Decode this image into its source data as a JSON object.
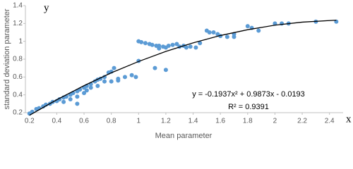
{
  "chart_data": {
    "type": "scatter",
    "x_label": "Mean parameter",
    "y_label": "standard deviation parameter",
    "x_axis_letter": "x",
    "y_axis_letter": "y",
    "equation": "y = -0.1937x² + 0.9873x - 0.0193",
    "r_squared": "R² = 0.9391",
    "color": "#5b9bd5",
    "x": [
      0.2,
      0.22,
      0.25,
      0.27,
      0.3,
      0.32,
      0.35,
      0.37,
      0.4,
      0.42,
      0.45,
      0.47,
      0.5,
      0.52,
      0.55,
      0.57,
      0.6,
      0.62,
      0.65,
      0.68,
      0.7,
      0.72,
      0.75,
      0.78,
      0.8,
      0.82,
      0.45,
      0.5,
      0.55,
      0.6,
      0.62,
      0.65,
      0.7,
      0.75,
      0.8,
      0.85,
      0.9,
      0.95,
      0.98,
      0.85,
      0.55,
      1.0,
      1.12,
      1.2,
      1.0,
      1.02,
      1.05,
      1.08,
      1.1,
      1.13,
      1.15,
      1.18,
      1.2,
      1.22,
      1.25,
      1.28,
      1.3,
      1.33,
      1.35,
      1.38,
      1.42,
      1.45,
      1.5,
      1.52,
      1.55,
      1.58,
      1.6,
      1.65,
      1.7,
      1.8,
      1.83,
      1.88,
      2.0,
      2.05,
      2.1,
      2.3,
      2.45,
      1.7,
      1.15
    ],
    "values": [
      0.19,
      0.21,
      0.24,
      0.25,
      0.27,
      0.29,
      0.3,
      0.32,
      0.33,
      0.35,
      0.37,
      0.38,
      0.4,
      0.42,
      0.44,
      0.46,
      0.48,
      0.5,
      0.52,
      0.55,
      0.57,
      0.58,
      0.6,
      0.65,
      0.66,
      0.7,
      0.32,
      0.35,
      0.38,
      0.42,
      0.45,
      0.48,
      0.5,
      0.55,
      0.55,
      0.56,
      0.6,
      0.62,
      0.6,
      0.58,
      0.3,
      0.78,
      0.7,
      0.68,
      1.0,
      0.99,
      0.98,
      0.97,
      0.96,
      0.95,
      0.95,
      0.94,
      0.93,
      0.95,
      0.96,
      0.97,
      0.94,
      0.95,
      0.93,
      0.94,
      0.93,
      0.98,
      1.12,
      1.1,
      1.1,
      1.08,
      1.06,
      1.05,
      1.05,
      1.17,
      1.15,
      1.12,
      1.2,
      1.2,
      1.2,
      1.22,
      1.22,
      1.08,
      0.92
    ],
    "trendline": {
      "color": "#000000",
      "x": [
        0.2,
        0.4,
        0.6,
        0.8,
        1.0,
        1.2,
        1.4,
        1.6,
        1.8,
        2.0,
        2.2,
        2.45
      ],
      "values": [
        0.171,
        0.345,
        0.503,
        0.647,
        0.774,
        0.887,
        0.983,
        1.065,
        1.13,
        1.181,
        1.215,
        1.237
      ]
    },
    "xlim": [
      0.17,
      2.5
    ],
    "ylim": [
      0.2,
      1.4
    ],
    "xticks": [
      0.2,
      0.4,
      0.6,
      0.8,
      1,
      1.2,
      1.4,
      1.6,
      1.8,
      2,
      2.2,
      2.4
    ],
    "yticks": [
      0.2,
      0.4,
      0.6,
      0.8,
      1,
      1.2,
      1.4
    ]
  }
}
